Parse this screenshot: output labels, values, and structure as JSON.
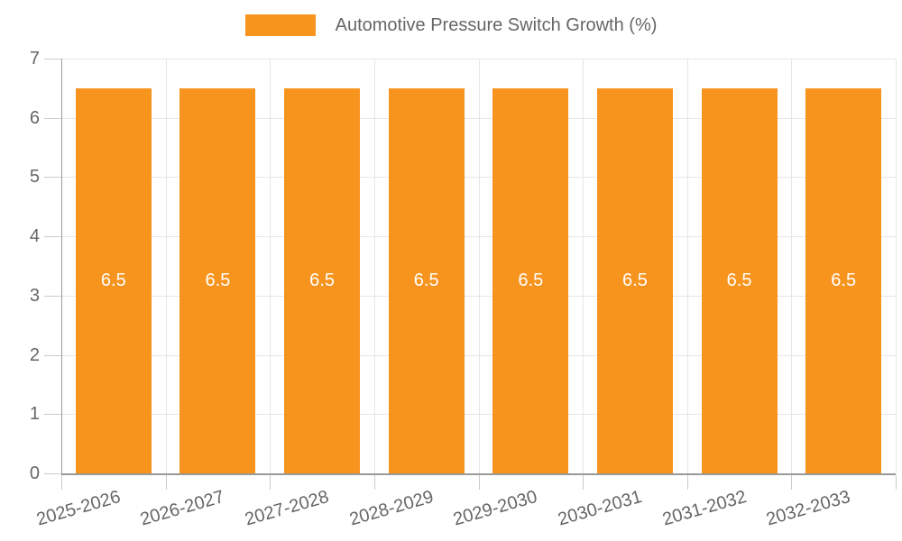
{
  "chart_data": {
    "type": "bar",
    "title": "Automotive Pressure Switch Growth (%)",
    "categories": [
      "2025-2026",
      "2026-2027",
      "2027-2028",
      "2028-2029",
      "2029-2030",
      "2030-2031",
      "2031-2032",
      "2032-2033"
    ],
    "series": [
      {
        "name": "Automotive Pressure Switch Growth (%)",
        "values": [
          6.5,
          6.5,
          6.5,
          6.5,
          6.5,
          6.5,
          6.5,
          6.5
        ],
        "color": "#F7941E"
      }
    ],
    "data_labels": [
      "6.5",
      "6.5",
      "6.5",
      "6.5",
      "6.5",
      "6.5",
      "6.5",
      "6.5"
    ],
    "data_label_position": "center",
    "xlabel": "",
    "ylabel": "",
    "ylim": [
      0,
      7
    ],
    "yticks": [
      "0",
      "1",
      "2",
      "3",
      "4",
      "5",
      "6",
      "7"
    ],
    "grid": true,
    "legend_position": "top"
  },
  "colors": {
    "bar": "#F7941E",
    "bar_label_text": "#ffffff",
    "axis_line": "#999999",
    "gridline": "#e6e6e6",
    "tick": "#cccccc",
    "axis_label_text": "#666666",
    "background": "#ffffff"
  }
}
